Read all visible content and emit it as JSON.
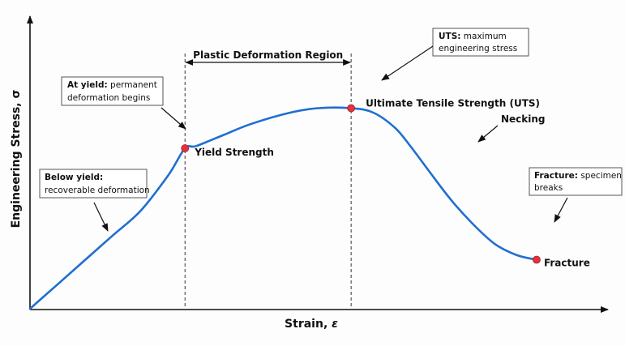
{
  "chart_data": {
    "type": "line",
    "title": "",
    "xlabel_main": "Strain, ",
    "xlabel_symbol": "ε",
    "ylabel": "Engineering Stress, σ",
    "ticks": "none",
    "grid": false,
    "xlim": [
      0,
      100
    ],
    "ylim": [
      0,
      100
    ],
    "curve": {
      "x": [
        0,
        5,
        10,
        15,
        20,
        25,
        28,
        30,
        35,
        40,
        47,
        52,
        58,
        62,
        66,
        69,
        72,
        76,
        80,
        84,
        88,
        91.5
      ],
      "y": [
        0,
        11,
        22,
        33,
        44,
        60,
        72,
        73,
        78,
        83,
        88,
        90,
        90,
        88,
        81,
        72,
        62,
        49,
        38,
        29,
        24,
        22
      ]
    },
    "points": [
      {
        "name": "Yield Strength",
        "x": 28,
        "y": 72
      },
      {
        "name": "Ultimate Tensile Strength (UTS)",
        "x": 58,
        "y": 90
      },
      {
        "name": "Fracture",
        "x": 91.5,
        "y": 22
      }
    ],
    "region": {
      "label": "Plastic Deformation Region",
      "x_start": 28,
      "x_end": 58
    },
    "annotations": {
      "necking": "Necking",
      "below_yield": {
        "bold": "Below yield:",
        "text": "recoverable deformation"
      },
      "at_yield": {
        "bold": "At yield:",
        "text1": "permanent",
        "text2": "deformation begins"
      },
      "uts": {
        "bold": "UTS:",
        "text1": "maximum",
        "text2": "engineering stress"
      },
      "fracture": {
        "bold": "Fracture:",
        "text1": "specimen",
        "text2": "breaks"
      }
    }
  }
}
